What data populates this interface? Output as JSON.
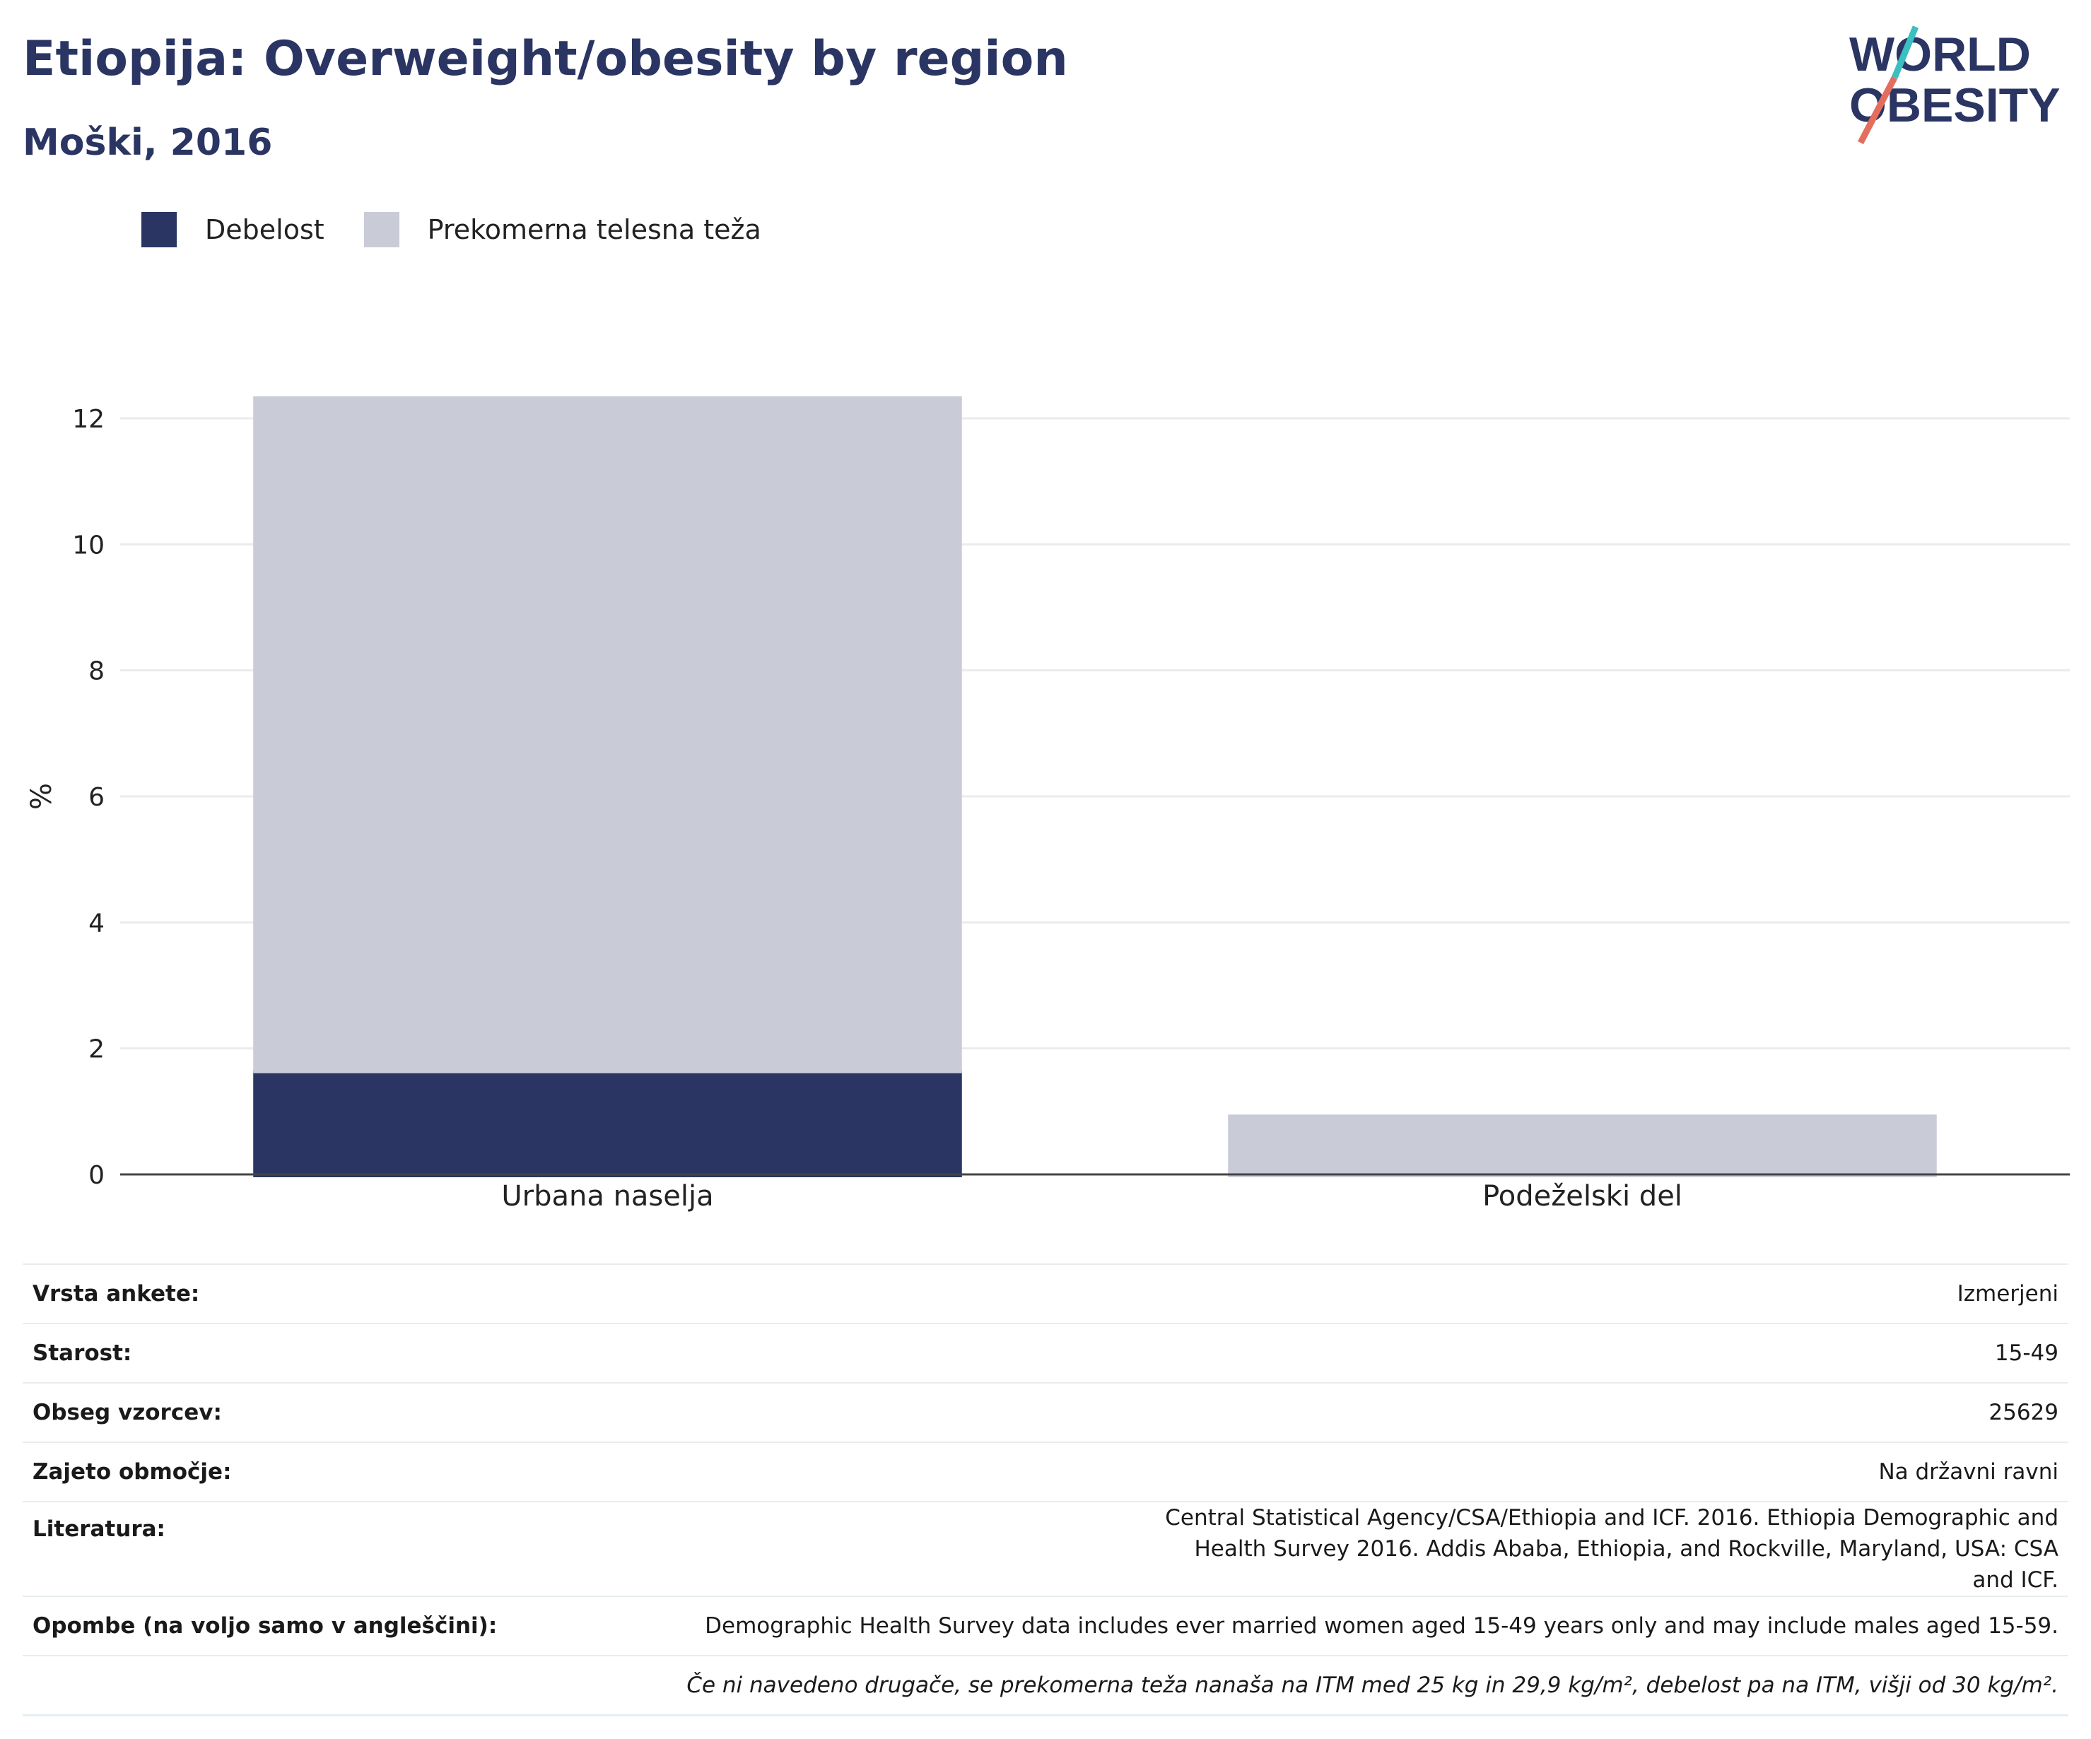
{
  "header": {
    "title": "Etiopija: Overweight/obesity by region",
    "subtitle": "Moški, 2016"
  },
  "logo": {
    "line1": "WORLD",
    "line2": "OBESITY"
  },
  "colors": {
    "obesity": "#2a3563",
    "overweight": "#c9ccd7",
    "accent_red": "#e36e5e",
    "accent_teal": "#3cbfc1"
  },
  "chart_data": {
    "type": "bar",
    "stacked": true,
    "categories": [
      "Urbana naselja",
      "Podeželski del"
    ],
    "series": [
      {
        "name": "Debelost",
        "values": [
          1.65,
          0.0
        ]
      },
      {
        "name": "Prekomerna telesna teža",
        "values": [
          10.7,
          0.95
        ]
      }
    ],
    "ylabel": "%",
    "ylim": [
      0,
      12
    ],
    "yticks": [
      0,
      2,
      4,
      6,
      8,
      10,
      12
    ],
    "grid": true,
    "legend_position": "top-left"
  },
  "meta": [
    {
      "label": "Vrsta ankete:",
      "value": "Izmerjeni"
    },
    {
      "label": "Starost:",
      "value": "15-49"
    },
    {
      "label": "Obseg vzorcev:",
      "value": "25629"
    },
    {
      "label": "Zajeto območje:",
      "value": "Na državni ravni"
    },
    {
      "label": "Literatura:",
      "value": "Central Statistical Agency/CSA/Ethiopia and ICF. 2016. Ethiopia Demographic and Health Survey 2016. Addis Ababa, Ethiopia, and Rockville, Maryland, USA: CSA and ICF."
    },
    {
      "label": "Opombe (na voljo samo v angleščini):",
      "value": "Demographic Health Survey data includes ever married women aged 15-49 years only and may include males aged 15-59."
    },
    {
      "label": "",
      "value": "Če ni navedeno drugače, se prekomerna teža nanaša na ITM med 25 kg in 29,9 kg/m², debelost pa na ITM, višji od 30 kg/m²."
    }
  ]
}
